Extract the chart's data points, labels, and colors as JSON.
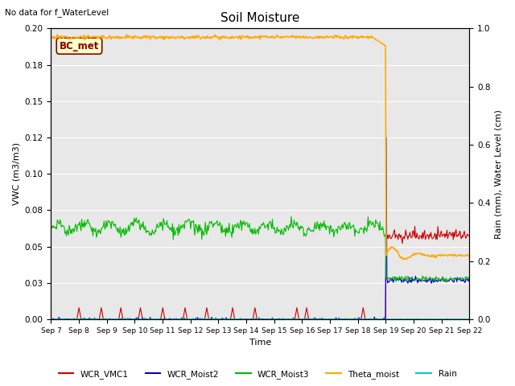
{
  "title": "Soil Moisture",
  "top_left_text": "No data for f_WaterLevel",
  "annotation_text": "BC_met",
  "ylabel_left": "VWC (m3/m3)",
  "ylabel_right": "Rain (mm), Water Level (cm)",
  "xlabel": "Time",
  "ylim_left": [
    0.0,
    0.2
  ],
  "ylim_right": [
    0.0,
    1.0
  ],
  "xtick_labels": [
    "Sep 7",
    "Sep 8",
    "Sep 9",
    "Sep 10",
    "Sep 11",
    "Sep 12",
    "Sep 13",
    "Sep 14",
    "Sep 15",
    "Sep 16",
    "Sep 17",
    "Sep 18",
    "Sep 19",
    "Sep 20",
    "Sep 21",
    "Sep 22"
  ],
  "colors": {
    "WCR_VMC1": "#cc0000",
    "WCR_Moist2": "#0000cc",
    "WCR_Moist3": "#00bb00",
    "Theta_moist": "#ffaa00",
    "Rain": "#00cccc"
  },
  "background_color": "#e8e8e8",
  "fig_background": "#ffffff",
  "theta_before": 0.97,
  "theta_after": 0.22,
  "theta_mid": 0.94,
  "green_before": 0.063,
  "green_after": 0.028,
  "red_after": 0.058,
  "blue_spike": 0.125,
  "blue_after": 0.027
}
